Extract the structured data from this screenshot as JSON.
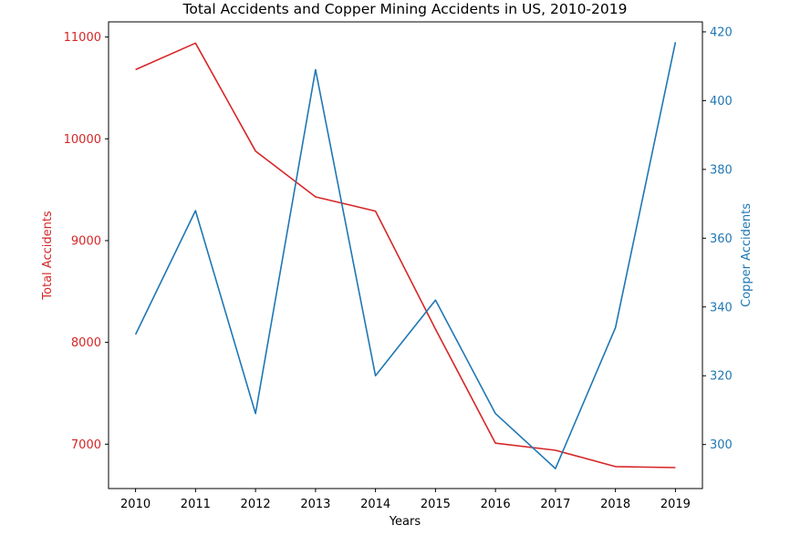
{
  "chart_data": {
    "type": "line",
    "title": "Total Accidents and Copper Mining Accidents in US, 2010-2019",
    "xlabel": "Years",
    "ylabel_left": "Total Accidents",
    "ylabel_right": "Copper Accidents",
    "x": [
      2010,
      2011,
      2012,
      2013,
      2014,
      2015,
      2016,
      2017,
      2018,
      2019
    ],
    "x_tick_labels": [
      "2010",
      "2011",
      "2012",
      "2013",
      "2014",
      "2015",
      "2016",
      "2017",
      "2018",
      "2019"
    ],
    "ylim_left": [
      6564,
      11149
    ],
    "ylim_right": [
      287.2,
      422.9
    ],
    "yticks_left": [
      7000,
      8000,
      9000,
      10000,
      11000
    ],
    "yticks_right": [
      300,
      320,
      340,
      360,
      380,
      400,
      420
    ],
    "grid": false,
    "series": [
      {
        "axis": "left",
        "color": "#d62728",
        "values": [
          10680,
          10940,
          9880,
          9430,
          9290,
          8130,
          7010,
          6940,
          6780,
          6770
        ]
      },
      {
        "axis": "right",
        "color": "#1f77b4",
        "values": [
          332,
          368,
          309,
          409,
          320,
          342,
          309,
          293,
          334,
          417
        ]
      }
    ]
  }
}
